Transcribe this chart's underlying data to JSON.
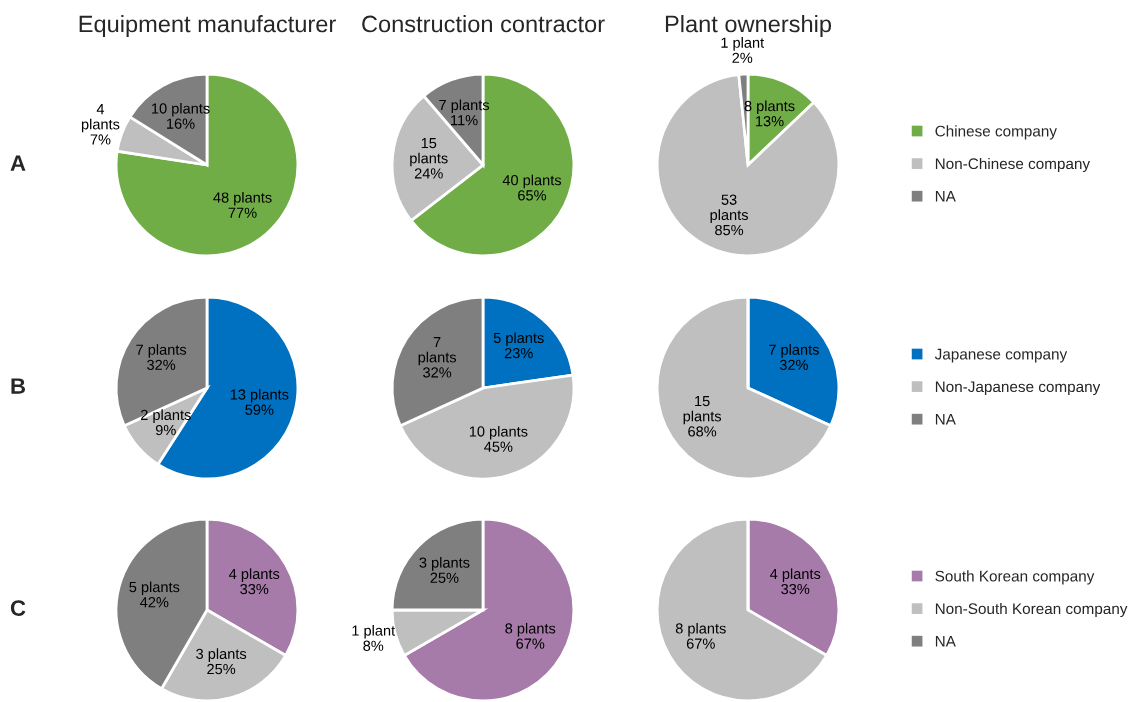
{
  "chart_data": [
    {
      "type": "pie",
      "title": "Equipment manufacturer",
      "annotations": [
        "A"
      ],
      "categories": [
        "Chinese company",
        "Non-Chinese company",
        "NA"
      ],
      "values": [
        48,
        4,
        10
      ],
      "colors": [
        "#70ad47",
        "#bfbfbf",
        "#7f7f7f"
      ],
      "value_labels": [
        "48 plants\n77%",
        "4\nplants\n7%",
        "10 plants\n16%"
      ],
      "legend": "right"
    },
    {
      "type": "pie",
      "title": "Construction contractor",
      "categories": [
        null,
        null,
        null
      ],
      "values": [
        40,
        15,
        7
      ],
      "colors": [
        "#70ad47",
        "#bfbfbf",
        "#7f7f7f"
      ],
      "value_labels": [
        "40 plants\n65%",
        "15\nplants\n24%",
        "7 plants\n11%"
      ]
    },
    {
      "type": "pie",
      "title": "Plant ownership",
      "categories": [
        null,
        null,
        null
      ],
      "values": [
        8,
        53,
        1
      ],
      "colors": [
        "#70ad47",
        "#bfbfbf",
        "#7f7f7f"
      ],
      "value_labels": [
        "8 plants\n13%",
        "53\nplants\n85%",
        "1 plant\n2%"
      ]
    },
    {
      "type": "pie",
      "annotations": [
        "B"
      ],
      "categories": [
        "Japanese company",
        "Non-Japanese company",
        "NA"
      ],
      "values": [
        13,
        2,
        7
      ],
      "colors": [
        "#0070c0",
        "#bfbfbf",
        "#7f7f7f"
      ],
      "value_labels": [
        "13 plants\n59%",
        "2 plants\n9%",
        "7 plants\n32%"
      ],
      "legend": "right"
    },
    {
      "type": "pie",
      "categories": [
        null,
        null,
        null
      ],
      "values": [
        5,
        10,
        7
      ],
      "colors": [
        "#0070c0",
        "#bfbfbf",
        "#7f7f7f"
      ],
      "value_labels": [
        "5 plants\n23%",
        "10 plants\n45%",
        "7\nplants\n32%"
      ]
    },
    {
      "type": "pie",
      "categories": [
        null,
        null,
        null
      ],
      "values": [
        7,
        15,
        0
      ],
      "colors": [
        "#0070c0",
        "#bfbfbf",
        "#7f7f7f"
      ],
      "value_labels": [
        "7 plants\n32%",
        "15\nplants\n68%",
        null
      ]
    },
    {
      "type": "pie",
      "annotations": [
        "C"
      ],
      "categories": [
        "South Korean company",
        "Non-South Korean company",
        "NA"
      ],
      "values": [
        4,
        3,
        5
      ],
      "colors": [
        "#a67ba9",
        "#bfbfbf",
        "#7f7f7f"
      ],
      "value_labels": [
        "4 plants\n33%",
        "3 plants\n25%",
        "5 plants\n42%"
      ],
      "legend": "right"
    },
    {
      "type": "pie",
      "categories": [
        null,
        null,
        null
      ],
      "values": [
        8,
        1,
        3
      ],
      "colors": [
        "#a67ba9",
        "#bfbfbf",
        "#7f7f7f"
      ],
      "value_labels": [
        "8 plants\n67%",
        "1 plant\n8%",
        "3 plants\n25%"
      ]
    },
    {
      "type": "pie",
      "categories": [
        null,
        null,
        null
      ],
      "values": [
        4,
        8,
        0
      ],
      "colors": [
        "#a67ba9",
        "#bfbfbf",
        "#7f7f7f"
      ],
      "value_labels": [
        "4 plants\n33%",
        "8 plants\n67%",
        null
      ]
    }
  ]
}
